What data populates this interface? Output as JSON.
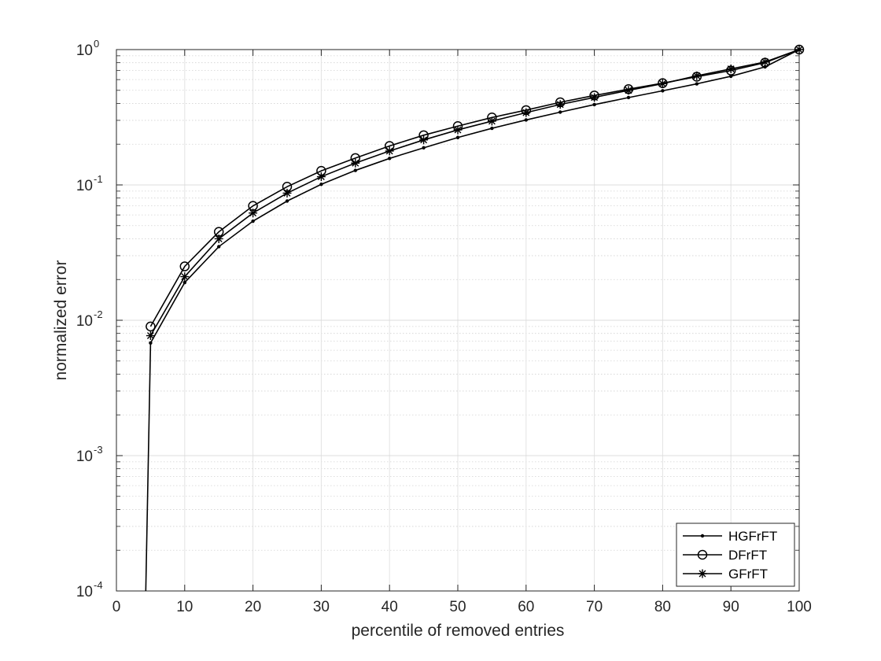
{
  "chart_data": {
    "type": "line",
    "xlabel": "percentile of removed entries",
    "ylabel": "normalized error",
    "xlim": [
      0,
      100
    ],
    "ylim": [
      0.0001,
      1
    ],
    "yscale": "log",
    "grid": true,
    "minor_grid": true,
    "legend_position": "bottom-right",
    "x_ticks": [
      "0",
      "10",
      "20",
      "30",
      "40",
      "50",
      "60",
      "70",
      "80",
      "90",
      "100"
    ],
    "y_ticks": [
      {
        "base": "10",
        "exp": "-4"
      },
      {
        "base": "10",
        "exp": "-3"
      },
      {
        "base": "10",
        "exp": "-2"
      },
      {
        "base": "10",
        "exp": "-1"
      },
      {
        "base": "10",
        "exp": "0"
      }
    ],
    "series": [
      {
        "name": "HGFrFT",
        "marker": "dot",
        "x": [
          4.3,
          5,
          10,
          15,
          20,
          25,
          30,
          35,
          40,
          45,
          50,
          55,
          60,
          65,
          70,
          75,
          80,
          85,
          90,
          95,
          100
        ],
        "y": [
          0.0001,
          0.0068,
          0.019,
          0.035,
          0.054,
          0.076,
          0.101,
          0.128,
          0.157,
          0.188,
          0.224,
          0.262,
          0.302,
          0.345,
          0.392,
          0.442,
          0.496,
          0.558,
          0.635,
          0.745,
          1.0
        ]
      },
      {
        "name": "DFrFT",
        "marker": "circle",
        "x": [
          5,
          10,
          15,
          20,
          25,
          30,
          35,
          40,
          45,
          50,
          55,
          60,
          65,
          70,
          75,
          80,
          85,
          90,
          95,
          100
        ],
        "y": [
          0.009,
          0.025,
          0.045,
          0.07,
          0.097,
          0.127,
          0.158,
          0.194,
          0.233,
          0.272,
          0.315,
          0.357,
          0.408,
          0.458,
          0.51,
          0.565,
          0.63,
          0.7,
          0.8,
          1.0
        ]
      },
      {
        "name": "GFrFT",
        "marker": "star",
        "x": [
          5,
          10,
          15,
          20,
          25,
          30,
          35,
          40,
          45,
          50,
          55,
          60,
          65,
          70,
          75,
          80,
          85,
          90,
          95,
          100
        ],
        "y": [
          0.0077,
          0.021,
          0.04,
          0.062,
          0.087,
          0.115,
          0.145,
          0.178,
          0.215,
          0.255,
          0.296,
          0.342,
          0.393,
          0.443,
          0.5,
          0.56,
          0.64,
          0.72,
          0.81,
          1.0
        ]
      }
    ]
  }
}
